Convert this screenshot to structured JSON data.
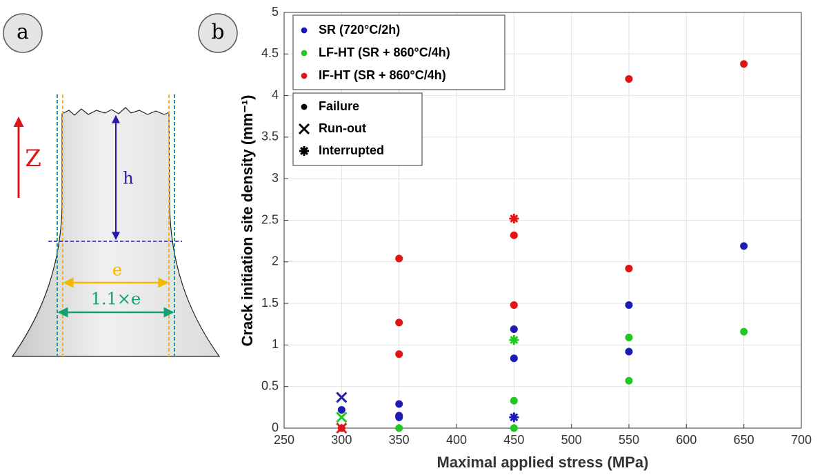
{
  "panels": [
    "a",
    "b"
  ],
  "diagram": {
    "axis_label": "Z",
    "height_label": "h",
    "width_label": "e",
    "outer_width_label": "1.1×e"
  },
  "chart_data": {
    "type": "scatter",
    "xlabel": "Maximal applied stress (MPa)",
    "ylabel": "Crack initiation site density (mm⁻¹)",
    "xlim": [
      250,
      700
    ],
    "xticks": [
      250,
      300,
      350,
      400,
      450,
      500,
      550,
      600,
      650,
      700
    ],
    "ylim": [
      0,
      5
    ],
    "yticks": [
      0,
      0.5,
      1,
      1.5,
      2,
      2.5,
      3,
      3.5,
      4,
      4.5,
      5
    ],
    "grid": true,
    "series": [
      {
        "name": "SR (720°C/2h)",
        "color": "#1c1cb4",
        "x": [
          300,
          300,
          350,
          350,
          350,
          450,
          450,
          450,
          550,
          550,
          650
        ],
        "values": [
          0.22,
          0.37,
          0.29,
          0.15,
          0.13,
          1.19,
          0.84,
          0.13,
          1.48,
          0.92,
          2.19
        ],
        "markers": [
          "dot",
          "x",
          "dot",
          "dot",
          "dot",
          "dot",
          "dot",
          "asterisk",
          "dot",
          "dot",
          "dot"
        ]
      },
      {
        "name": "LF-HT (SR + 860°C/4h)",
        "color": "#22c822",
        "x": [
          300,
          350,
          450,
          450,
          450,
          550,
          550,
          650
        ],
        "values": [
          0.13,
          0,
          1.06,
          0.33,
          0,
          1.09,
          0.57,
          1.16
        ],
        "markers": [
          "x",
          "dot",
          "asterisk",
          "dot",
          "dot",
          "dot",
          "dot",
          "dot"
        ]
      },
      {
        "name": "IF-HT (SR + 860°C/4h)",
        "color": "#e01414",
        "x": [
          300,
          300,
          350,
          350,
          350,
          450,
          450,
          450,
          550,
          550,
          650
        ],
        "values": [
          0,
          0,
          2.04,
          1.27,
          0.89,
          2.52,
          2.32,
          1.48,
          4.2,
          1.92,
          4.38
        ],
        "markers": [
          "x",
          "dot",
          "dot",
          "dot",
          "dot",
          "asterisk",
          "dot",
          "dot",
          "dot",
          "dot",
          "dot"
        ]
      }
    ],
    "marker_legend": [
      {
        "name": "Failure",
        "marker": "dot"
      },
      {
        "name": "Run-out",
        "marker": "x"
      },
      {
        "name": "Interrupted",
        "marker": "asterisk"
      }
    ]
  }
}
